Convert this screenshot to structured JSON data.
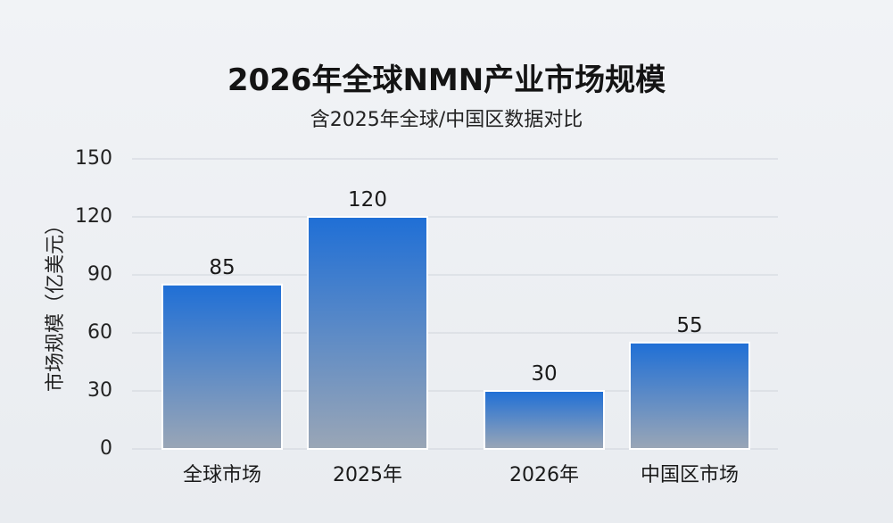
{
  "chart_data": {
    "type": "bar",
    "title": "2026年全球NMN产业市场规模",
    "subtitle": "含2025年全球/中国区数据对比",
    "ylabel": "市场规模（亿美元）",
    "xlabel": "",
    "categories": [
      "全球市场",
      "2025年",
      "2026年",
      "中国区市场"
    ],
    "values": [
      85,
      120,
      30,
      55
    ],
    "ylim": [
      0,
      150
    ],
    "yticks": [
      0,
      30,
      60,
      90,
      120,
      150
    ],
    "grid": true,
    "colors": {
      "bar_top": "#1f6fd6",
      "bar_bottom": "#9aa6b6",
      "grid": "#cfd4db"
    }
  }
}
